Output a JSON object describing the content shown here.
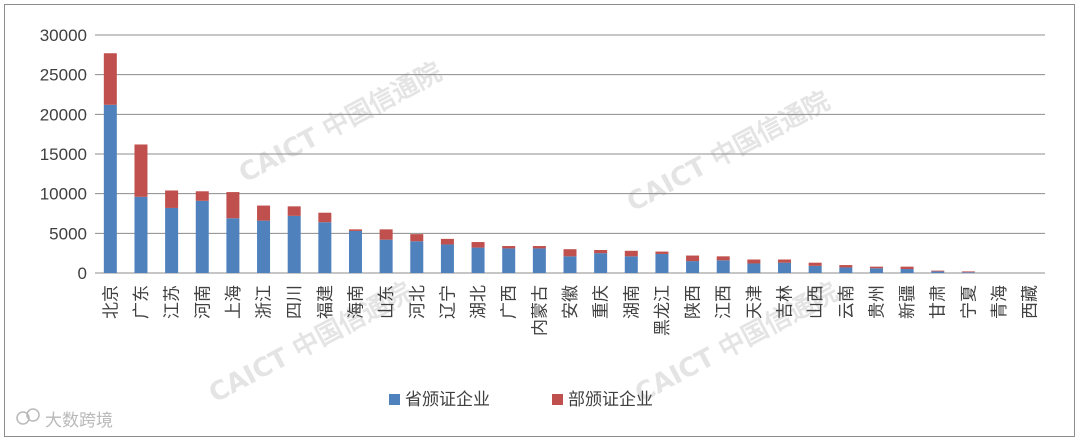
{
  "chart_data": {
    "type": "bar",
    "stacked": true,
    "categories": [
      "北京",
      "广东",
      "江苏",
      "河南",
      "上海",
      "浙江",
      "四川",
      "福建",
      "海南",
      "山东",
      "河北",
      "辽宁",
      "湖北",
      "广西",
      "内蒙古",
      "安徽",
      "重庆",
      "湖南",
      "黑龙江",
      "陕西",
      "江西",
      "天津",
      "吉林",
      "山西",
      "云南",
      "贵州",
      "新疆",
      "甘肃",
      "宁夏",
      "青海",
      "西藏"
    ],
    "series": [
      {
        "name": "省颁证企业",
        "color": "#4f81bd",
        "values": [
          21200,
          9600,
          8200,
          9100,
          6900,
          6600,
          7200,
          6400,
          5300,
          4200,
          4000,
          3600,
          3200,
          3100,
          3100,
          2100,
          2500,
          2100,
          2400,
          1500,
          1600,
          1200,
          1300,
          900,
          700,
          600,
          500,
          200,
          100,
          0,
          0
        ]
      },
      {
        "name": "部颁证企业",
        "color": "#c0504d",
        "values": [
          6500,
          6600,
          2200,
          1200,
          3300,
          1900,
          1200,
          1200,
          200,
          1300,
          900,
          700,
          700,
          300,
          300,
          900,
          400,
          700,
          300,
          700,
          500,
          500,
          400,
          400,
          300,
          200,
          300,
          100,
          100,
          0,
          0
        ]
      }
    ],
    "ylim": [
      0,
      30000
    ],
    "yticks": [
      0,
      5000,
      10000,
      15000,
      20000,
      25000,
      30000
    ],
    "grid": true,
    "legend_position": "bottom"
  },
  "watermark": {
    "text": "CAICT 中国信通院"
  },
  "brand": {
    "text": "大数跨境"
  }
}
